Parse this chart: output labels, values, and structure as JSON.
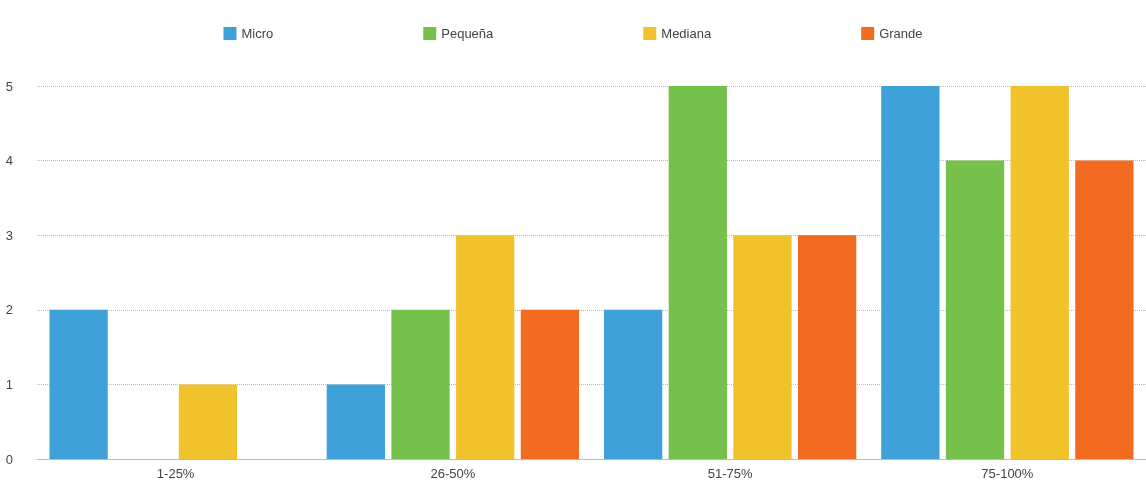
{
  "chart_data": {
    "type": "bar",
    "categories": [
      "1-25%",
      "26-50%",
      "51-75%",
      "75-100%"
    ],
    "series": [
      {
        "name": "Micro",
        "color": "#3ea2d8",
        "values": [
          2,
          1,
          2,
          5
        ]
      },
      {
        "name": "Pequeña",
        "color": "#76c04c",
        "values": [
          0,
          2,
          5,
          4
        ]
      },
      {
        "name": "Mediana",
        "color": "#f0c22b",
        "values": [
          1,
          3,
          3,
          5
        ]
      },
      {
        "name": "Grande",
        "color": "#f36b21",
        "values": [
          0,
          2,
          3,
          4
        ]
      }
    ],
    "ylim": [
      0,
      5
    ],
    "yticks": [
      0,
      1,
      2,
      3,
      4,
      5
    ],
    "grid": "y",
    "legend": "top"
  }
}
